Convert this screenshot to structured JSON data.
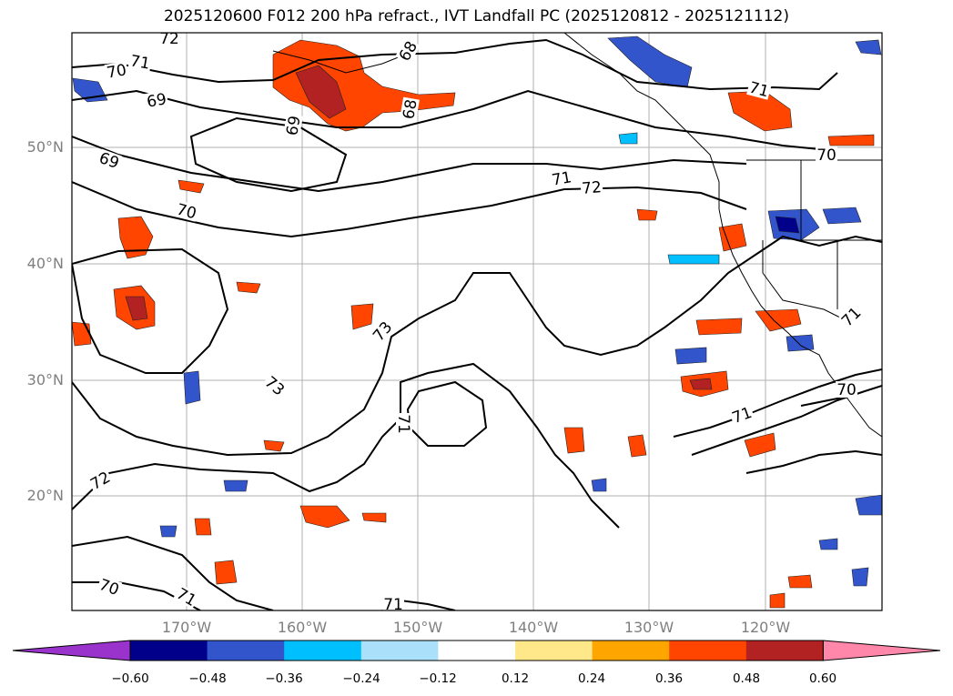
{
  "title": "2025120600 F012 200 hPa refract., IVT Landfall PC (2025120812 - 2025121112)",
  "map": {
    "lat_labels": [
      "50°N",
      "40°N",
      "30°N",
      "20°N"
    ],
    "lon_labels": [
      "170°W",
      "160°W",
      "150°W",
      "140°W",
      "130°W",
      "120°W"
    ],
    "contour_labels": [
      "72",
      "70",
      "71",
      "69",
      "69",
      "69",
      "68",
      "68",
      "70",
      "71",
      "72",
      "71",
      "70",
      "73",
      "73",
      "71",
      "72",
      "71",
      "71",
      "70",
      "71",
      "70",
      "71"
    ]
  },
  "colorbar": {
    "tick_labels": [
      "−0.60",
      "−0.48",
      "−0.36",
      "−0.24",
      "−0.12",
      "0.12",
      "0.24",
      "0.36",
      "0.48",
      "0.60"
    ],
    "colors": {
      "under": "#9933cc",
      "bins": [
        "#8a2be2",
        "#00008b",
        "#3355cc",
        "#00bfff",
        "#aae0fa",
        "#ffffff",
        "#ffe88a",
        "#ffa500",
        "#ff4500",
        "#b22222"
      ],
      "over": "#ff88aa"
    }
  }
}
